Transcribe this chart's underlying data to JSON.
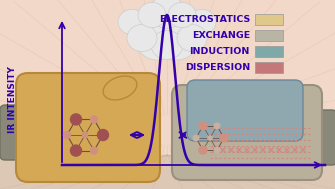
{
  "bg_color": "#f2d8c8",
  "peak_color": "#3300aa",
  "arrow_color": "#3300aa",
  "axis_color": "#3300aa",
  "ylabel": "IR INTENSITY",
  "ylabel_color": "#3300aa",
  "ylabel_fontsize": 6.5,
  "legend_labels": [
    "ELECTROSTATICS",
    "EXCHANGE",
    "INDUCTION",
    "DISPERSION"
  ],
  "legend_colors": [
    "#dfc88a",
    "#b8b5a5",
    "#7fa8a8",
    "#c47878"
  ],
  "legend_fontsize": 6.8,
  "legend_text_color": "#3300aa",
  "left_glove_color": "#d4a855",
  "left_glove_edge": "#b8883a",
  "right_glove_color": "#b8b09a",
  "right_glove_edge": "#9a9080",
  "left_handle_color": "#8a8878",
  "right_handle_color": "#8a8878",
  "molecule_bond_color": "#6a5040",
  "left_mol_large_color": "#a05050",
  "left_mol_small_color": "#d09080",
  "right_mol_large_color": "#d09080",
  "right_mol_small_color": "#c8b0a0",
  "cloud_color": "#e8e8e8",
  "cloud_edge": "#cccccc",
  "ray_color": "#e8c8b8",
  "floor_color": "#e0c8b8",
  "floor_line_color": "#c8a898",
  "stitch_color": "#d08880"
}
